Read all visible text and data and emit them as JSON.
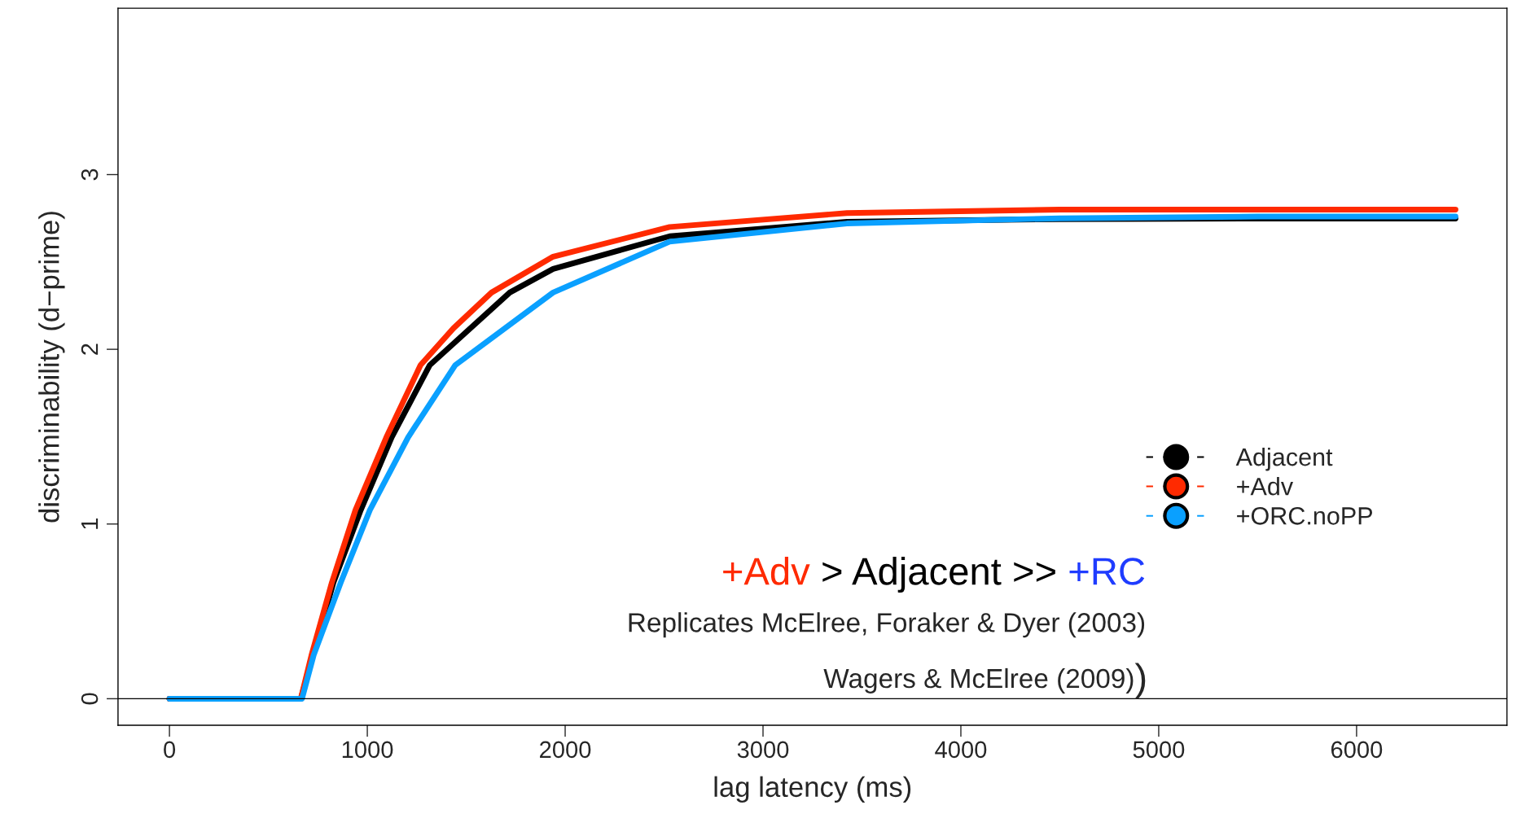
{
  "chart_data": {
    "type": "line",
    "xlabel": "lag latency (ms)",
    "ylabel": "discriminability (d−prime)",
    "xlim": [
      -260,
      6760
    ],
    "ylim": [
      -0.152,
      3.952
    ],
    "xticks": [
      0,
      1000,
      2000,
      3000,
      4000,
      5000,
      6000
    ],
    "yticks": [
      0,
      1,
      2,
      3
    ],
    "series": [
      {
        "name": "Adjacent",
        "color": "#000000",
        "x": [
          0,
          664,
          829,
          967,
          1123,
          1316,
          1720,
          1939,
          2528,
          3424,
          4500,
          5500,
          6500
        ],
        "values": [
          0,
          0,
          0.666,
          1.08,
          1.496,
          1.91,
          2.325,
          2.46,
          2.647,
          2.73,
          2.745,
          2.748,
          2.748
        ]
      },
      {
        "name": "+Adv",
        "color": "#ff2a00",
        "x": [
          0,
          664,
          718,
          821,
          940,
          1096,
          1269,
          1435,
          1628,
          1939,
          2528,
          3424,
          4500,
          5500,
          6500
        ],
        "values": [
          0,
          0,
          0.25,
          0.666,
          1.08,
          1.496,
          1.91,
          2.12,
          2.325,
          2.53,
          2.7,
          2.78,
          2.8,
          2.8,
          2.8
        ]
      },
      {
        "name": "+ORC.noPP",
        "color": "#0aa0ff",
        "x": [
          0,
          670,
          729,
          866,
          1013,
          1206,
          1445,
          1939,
          2528,
          3424,
          4500,
          5500,
          6500
        ],
        "values": [
          0,
          0,
          0.25,
          0.666,
          1.08,
          1.496,
          1.91,
          2.325,
          2.616,
          2.72,
          2.75,
          2.76,
          2.76
        ]
      }
    ],
    "ref_lines": [
      {
        "axis": "y",
        "value": 0,
        "color": "#000000"
      }
    ],
    "legend": "right",
    "annotations": [
      "+Adv",
      " > Adjacent >> ",
      "+RC",
      "Replicates McElree, Foraker & Dyer (2003)",
      "Wagers & McElree (2009)",
      ")"
    ]
  }
}
